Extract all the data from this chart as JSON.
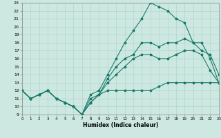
{
  "title": "",
  "xlabel": "Humidex (Indice chaleur)",
  "ylabel": "",
  "background_color": "#cce8e0",
  "grid_color": "#aacfc8",
  "line_color": "#1a7a6a",
  "x_values": [
    0,
    1,
    2,
    3,
    4,
    5,
    6,
    7,
    8,
    9,
    10,
    11,
    12,
    13,
    14,
    15,
    16,
    17,
    18,
    19,
    20,
    21,
    22,
    23
  ],
  "line1_y": [
    12,
    11,
    11.5,
    12,
    11,
    10.5,
    10,
    9,
    10.5,
    11.5,
    12,
    12,
    12,
    12,
    12,
    12,
    12.5,
    13,
    13,
    13,
    13,
    13,
    13,
    13
  ],
  "line2_y": [
    12,
    11,
    11.5,
    12,
    11,
    10.5,
    10,
    9,
    10.5,
    11.5,
    13,
    14,
    15,
    16,
    16.5,
    16.5,
    16,
    16,
    16.5,
    17,
    17,
    16.5,
    14.5,
    13
  ],
  "line3_y": [
    12,
    11,
    11.5,
    12,
    11,
    10.5,
    10,
    9,
    11,
    11.5,
    13.5,
    15,
    16,
    16.5,
    18,
    18,
    17.5,
    18,
    18,
    18.5,
    18,
    18,
    16,
    13
  ],
  "line4_y": [
    12,
    11,
    11.5,
    12,
    11,
    10.5,
    10,
    9,
    11.5,
    12,
    14,
    16,
    18,
    19.5,
    21,
    23,
    22.5,
    22,
    21,
    20.5,
    18,
    17,
    16.5,
    14
  ],
  "ylim": [
    9,
    23
  ],
  "xlim": [
    0,
    23
  ],
  "yticks": [
    9,
    10,
    11,
    12,
    13,
    14,
    15,
    16,
    17,
    18,
    19,
    20,
    21,
    22,
    23
  ],
  "xticks": [
    0,
    1,
    2,
    3,
    4,
    5,
    6,
    7,
    8,
    9,
    10,
    11,
    12,
    13,
    14,
    15,
    16,
    17,
    18,
    19,
    20,
    21,
    22,
    23
  ]
}
